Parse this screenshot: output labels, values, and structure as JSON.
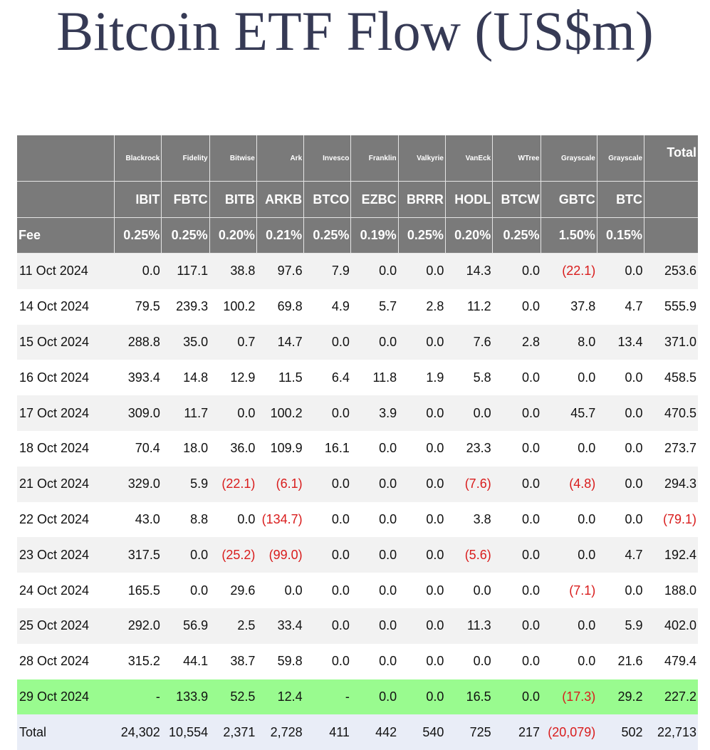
{
  "title": "Bitcoin ETF Flow (US$m)",
  "header": {
    "corner_label": "Fee",
    "total_label": "Total",
    "funds": [
      {
        "provider": "Blackrock",
        "ticker": "IBIT",
        "fee": "0.25%"
      },
      {
        "provider": "Fidelity",
        "ticker": "FBTC",
        "fee": "0.25%"
      },
      {
        "provider": "Bitwise",
        "ticker": "BITB",
        "fee": "0.20%"
      },
      {
        "provider": "Ark",
        "ticker": "ARKB",
        "fee": "0.21%"
      },
      {
        "provider": "Invesco",
        "ticker": "BTCO",
        "fee": "0.25%"
      },
      {
        "provider": "Franklin",
        "ticker": "EZBC",
        "fee": "0.19%"
      },
      {
        "provider": "Valkyrie",
        "ticker": "BRRR",
        "fee": "0.25%"
      },
      {
        "provider": "VanEck",
        "ticker": "HODL",
        "fee": "0.20%"
      },
      {
        "provider": "WTree",
        "ticker": "BTCW",
        "fee": "0.25%"
      },
      {
        "provider": "Grayscale",
        "ticker": "GBTC",
        "fee": "1.50%"
      },
      {
        "provider": "Grayscale",
        "ticker": "BTC",
        "fee": "0.15%"
      }
    ]
  },
  "rows": [
    {
      "date": "11 Oct 2024",
      "cells": [
        "0.0",
        "117.1",
        "38.8",
        "97.6",
        "7.9",
        "0.0",
        "0.0",
        "14.3",
        "0.0",
        "(22.1)",
        "0.0",
        "253.6"
      ]
    },
    {
      "date": "14 Oct 2024",
      "cells": [
        "79.5",
        "239.3",
        "100.2",
        "69.8",
        "4.9",
        "5.7",
        "2.8",
        "11.2",
        "0.0",
        "37.8",
        "4.7",
        "555.9"
      ]
    },
    {
      "date": "15 Oct 2024",
      "cells": [
        "288.8",
        "35.0",
        "0.7",
        "14.7",
        "0.0",
        "0.0",
        "0.0",
        "7.6",
        "2.8",
        "8.0",
        "13.4",
        "371.0"
      ]
    },
    {
      "date": "16 Oct 2024",
      "cells": [
        "393.4",
        "14.8",
        "12.9",
        "11.5",
        "6.4",
        "11.8",
        "1.9",
        "5.8",
        "0.0",
        "0.0",
        "0.0",
        "458.5"
      ]
    },
    {
      "date": "17 Oct 2024",
      "cells": [
        "309.0",
        "11.7",
        "0.0",
        "100.2",
        "0.0",
        "3.9",
        "0.0",
        "0.0",
        "0.0",
        "45.7",
        "0.0",
        "470.5"
      ]
    },
    {
      "date": "18 Oct 2024",
      "cells": [
        "70.4",
        "18.0",
        "36.0",
        "109.9",
        "16.1",
        "0.0",
        "0.0",
        "23.3",
        "0.0",
        "0.0",
        "0.0",
        "273.7"
      ]
    },
    {
      "date": "21 Oct 2024",
      "cells": [
        "329.0",
        "5.9",
        "(22.1)",
        "(6.1)",
        "0.0",
        "0.0",
        "0.0",
        "(7.6)",
        "0.0",
        "(4.8)",
        "0.0",
        "294.3"
      ]
    },
    {
      "date": "22 Oct 2024",
      "cells": [
        "43.0",
        "8.8",
        "0.0",
        "(134.7)",
        "0.0",
        "0.0",
        "0.0",
        "3.8",
        "0.0",
        "0.0",
        "0.0",
        "(79.1)"
      ]
    },
    {
      "date": "23 Oct 2024",
      "cells": [
        "317.5",
        "0.0",
        "(25.2)",
        "(99.0)",
        "0.0",
        "0.0",
        "0.0",
        "(5.6)",
        "0.0",
        "0.0",
        "4.7",
        "192.4"
      ]
    },
    {
      "date": "24 Oct 2024",
      "cells": [
        "165.5",
        "0.0",
        "29.6",
        "0.0",
        "0.0",
        "0.0",
        "0.0",
        "0.0",
        "0.0",
        "(7.1)",
        "0.0",
        "188.0"
      ]
    },
    {
      "date": "25 Oct 2024",
      "cells": [
        "292.0",
        "56.9",
        "2.5",
        "33.4",
        "0.0",
        "0.0",
        "0.0",
        "11.3",
        "0.0",
        "0.0",
        "5.9",
        "402.0"
      ]
    },
    {
      "date": "28 Oct 2024",
      "cells": [
        "315.2",
        "44.1",
        "38.7",
        "59.8",
        "0.0",
        "0.0",
        "0.0",
        "0.0",
        "0.0",
        "0.0",
        "21.6",
        "479.4"
      ]
    },
    {
      "date": "29 Oct 2024",
      "cells": [
        "-",
        "133.9",
        "52.5",
        "12.4",
        "-",
        "0.0",
        "0.0",
        "16.5",
        "0.0",
        "(17.3)",
        "29.2",
        "227.2"
      ],
      "highlight": true
    },
    {
      "date": "Total",
      "cells": [
        "24,302",
        "10,554",
        "2,371",
        "2,728",
        "411",
        "442",
        "540",
        "725",
        "217",
        "(20,079)",
        "502",
        "22,713"
      ],
      "total": true
    }
  ],
  "colors": {
    "header_bg": "#7a7a7a",
    "negative": "#d91c1c",
    "highlight_row": "#99fb8f",
    "total_row": "#e9edf7",
    "title": "#363a55"
  }
}
